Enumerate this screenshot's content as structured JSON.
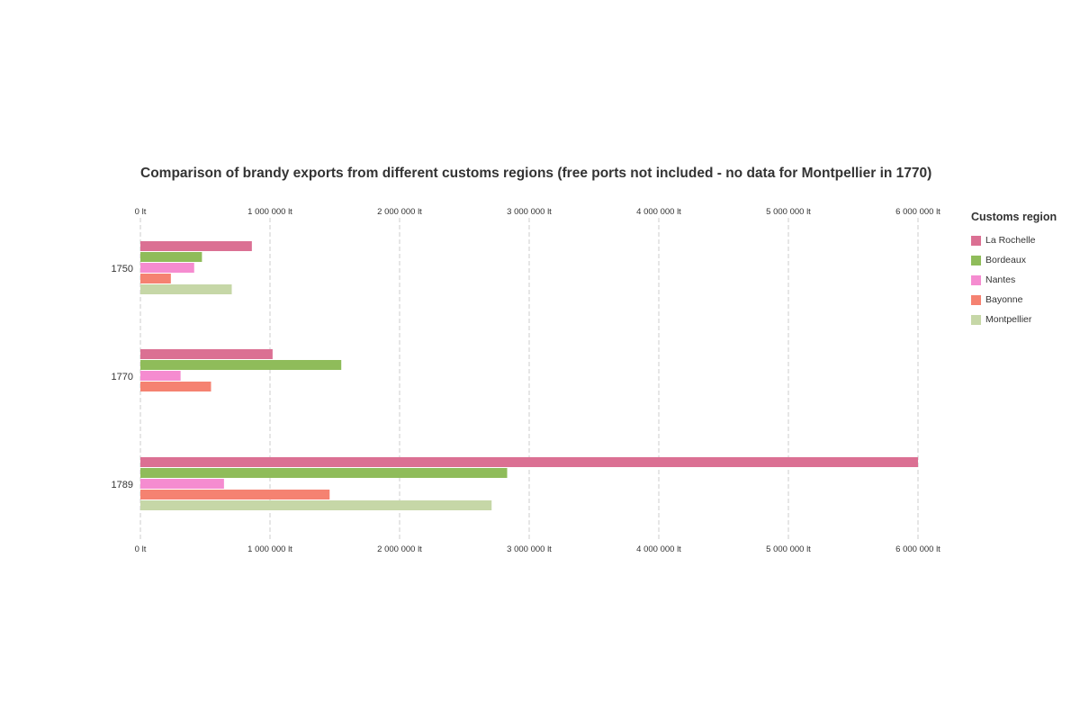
{
  "chart_data": {
    "type": "bar",
    "orientation": "horizontal",
    "title": "Comparison of brandy exports from different customs regions (free ports not included - no data for Montpellier in 1770)",
    "categories": [
      "1750",
      "1770",
      "1789"
    ],
    "x_ticks": [
      {
        "value": 0,
        "label": "0 lt"
      },
      {
        "value": 1000000,
        "label": "1 000 000 lt"
      },
      {
        "value": 2000000,
        "label": "2 000 000 lt"
      },
      {
        "value": 3000000,
        "label": "3 000 000 lt"
      },
      {
        "value": 4000000,
        "label": "4 000 000 lt"
      },
      {
        "value": 5000000,
        "label": "5 000 000 lt"
      },
      {
        "value": 6000000,
        "label": "6 000 000 lt"
      }
    ],
    "xlim": [
      0,
      6000000
    ],
    "grid": true,
    "legend": {
      "title": "Customs region",
      "placement": "right"
    },
    "series": [
      {
        "name": "La Rochelle",
        "color": "#db7093",
        "values": [
          860000,
          1020000,
          6000000
        ]
      },
      {
        "name": "Bordeaux",
        "color": "#8fbc5a",
        "values": [
          475000,
          1550000,
          2830000
        ]
      },
      {
        "name": "Nantes",
        "color": "#f58cd0",
        "values": [
          415000,
          310000,
          645000
        ]
      },
      {
        "name": "Bayonne",
        "color": "#f58271",
        "values": [
          235000,
          545000,
          1460000
        ]
      },
      {
        "name": "Montpellier",
        "color": "#c6d7a7",
        "values": [
          705000,
          null,
          2710000
        ]
      }
    ]
  }
}
